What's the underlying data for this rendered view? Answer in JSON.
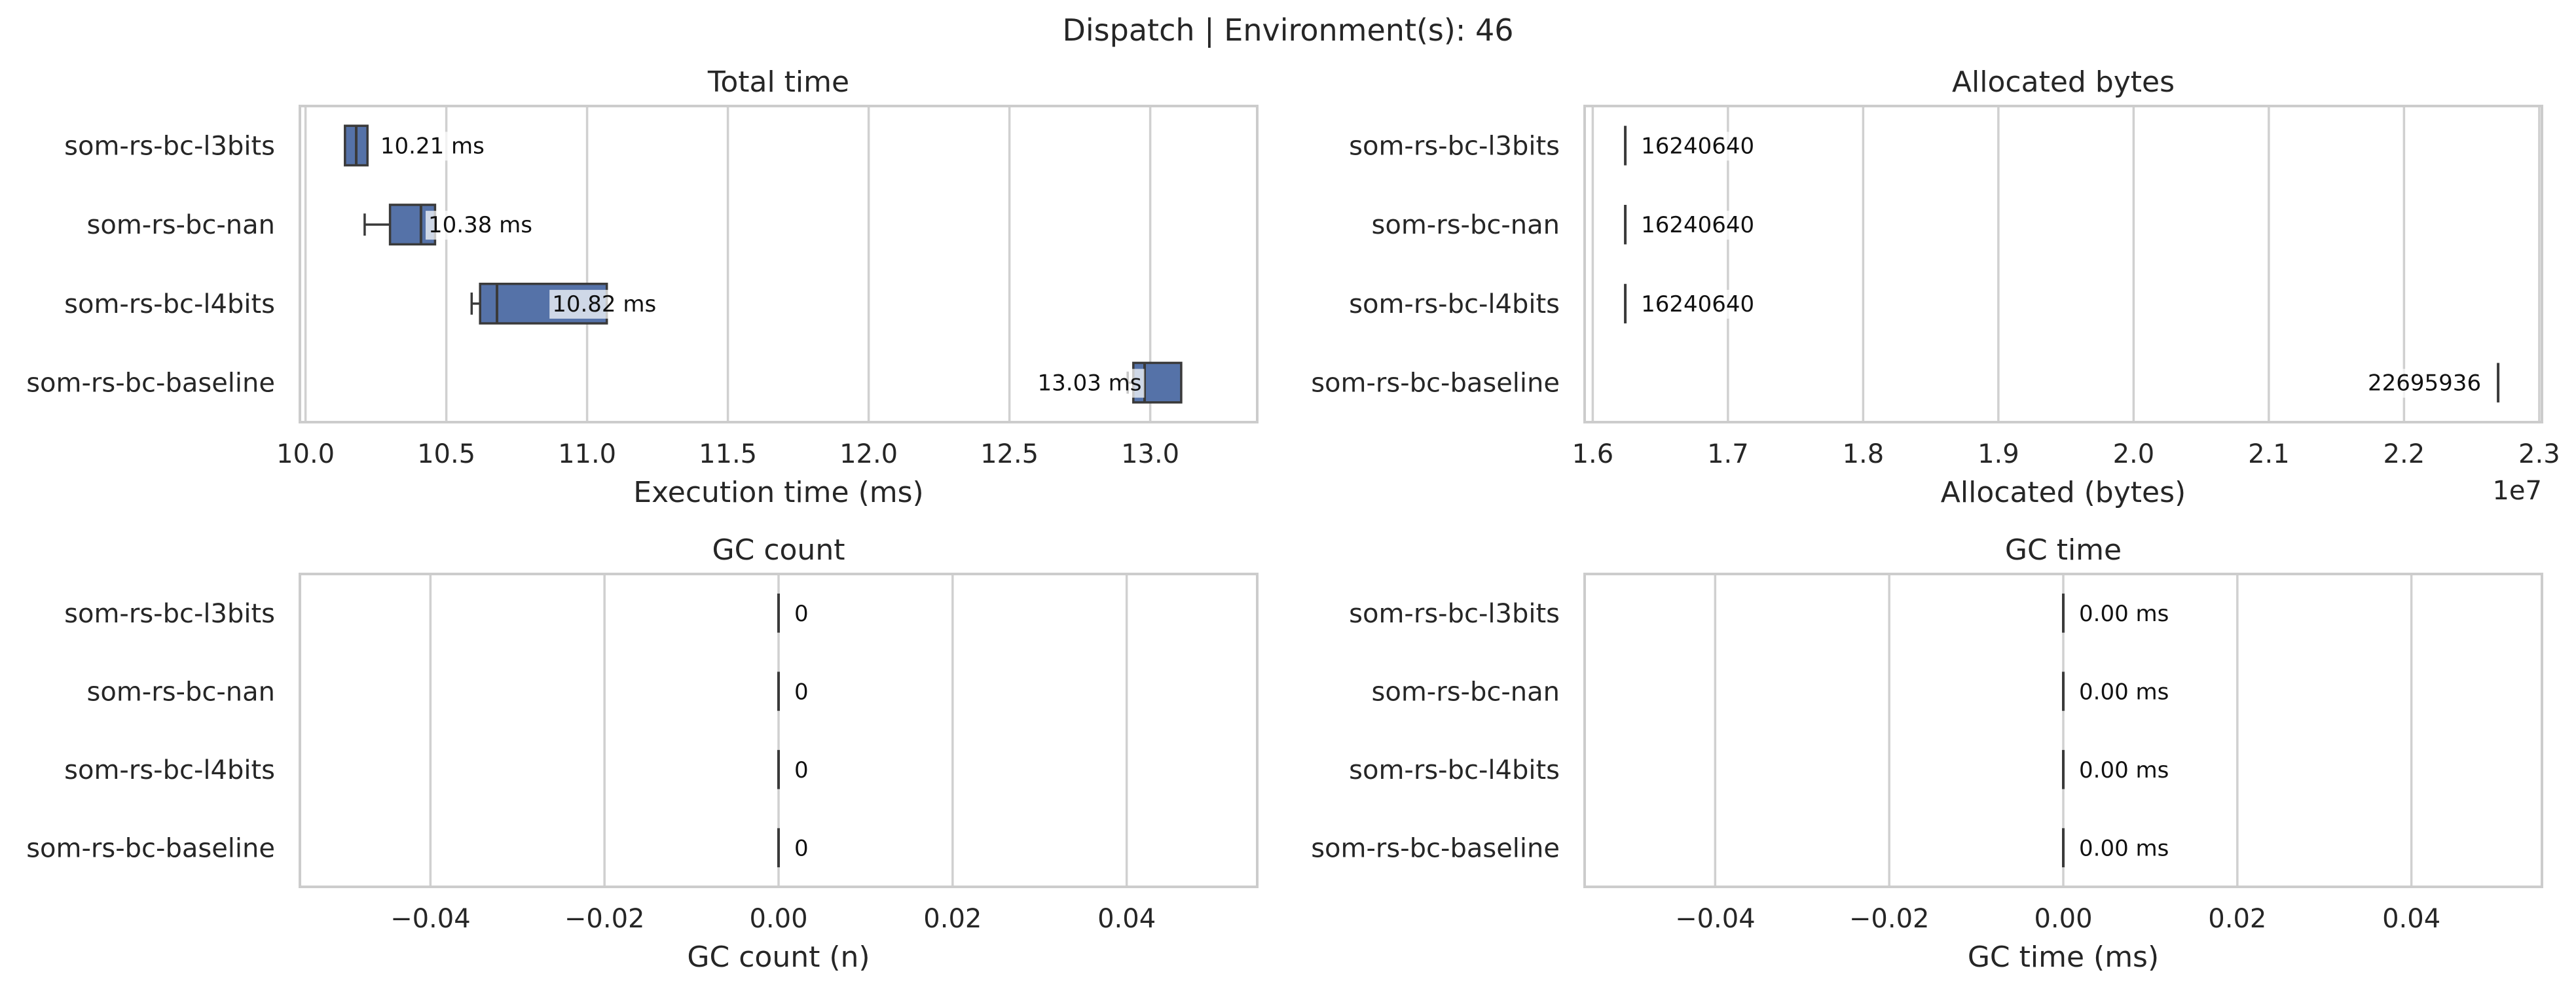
{
  "suptitle": "Dispatch | Environment(s): 46",
  "colors": {
    "box": "#5572a8",
    "grid": "#d0d0d0",
    "frame": "#cccccc"
  },
  "chart_data": [
    {
      "type": "box",
      "title": "Total time",
      "xlabel": "Execution time (ms)",
      "ylabel": "",
      "categories": [
        "som-rs-bc-l3bits",
        "som-rs-bc-nan",
        "som-rs-bc-l4bits",
        "som-rs-bc-baseline"
      ],
      "xlim": [
        9.98,
        13.38
      ],
      "xticks": [
        10.0,
        10.5,
        11.0,
        11.5,
        12.0,
        12.5,
        13.0
      ],
      "xtick_labels": [
        "10.0",
        "10.5",
        "11.0",
        "11.5",
        "12.0",
        "12.5",
        "13.0"
      ],
      "boxes": [
        {
          "whisker_low": 10.14,
          "q1": 10.14,
          "median": 10.18,
          "q3": 10.22,
          "whisker_high": 10.22
        },
        {
          "whisker_low": 10.21,
          "q1": 10.3,
          "median": 10.41,
          "q3": 10.46,
          "whisker_high": 10.46
        },
        {
          "whisker_low": 10.59,
          "q1": 10.62,
          "median": 10.68,
          "q3": 11.07,
          "whisker_high": 11.07
        },
        {
          "whisker_low": 12.92,
          "q1": 12.94,
          "median": 12.98,
          "q3": 13.11,
          "whisker_high": 13.11
        }
      ],
      "value_labels": [
        "10.21 ms",
        "10.38 ms",
        "10.82 ms",
        "13.03 ms"
      ],
      "label_values": [
        10.21,
        10.38,
        10.82,
        13.03
      ],
      "offset_text": ""
    },
    {
      "type": "box",
      "title": "Allocated bytes",
      "xlabel": "Allocated (bytes)",
      "ylabel": "",
      "categories": [
        "som-rs-bc-l3bits",
        "som-rs-bc-nan",
        "som-rs-bc-l4bits",
        "som-rs-bc-baseline"
      ],
      "xlim": [
        15940000,
        23020000
      ],
      "xticks": [
        16000000,
        17000000,
        18000000,
        19000000,
        20000000,
        21000000,
        22000000,
        23000000
      ],
      "xtick_labels": [
        "1.6",
        "1.7",
        "1.8",
        "1.9",
        "2.0",
        "2.1",
        "2.2",
        "2.3"
      ],
      "boxes": [
        {
          "whisker_low": 16240640,
          "q1": 16240640,
          "median": 16240640,
          "q3": 16240640,
          "whisker_high": 16240640
        },
        {
          "whisker_low": 16240640,
          "q1": 16240640,
          "median": 16240640,
          "q3": 16240640,
          "whisker_high": 16240640
        },
        {
          "whisker_low": 16240640,
          "q1": 16240640,
          "median": 16240640,
          "q3": 16240640,
          "whisker_high": 16240640
        },
        {
          "whisker_low": 22695936,
          "q1": 22695936,
          "median": 22695936,
          "q3": 22695936,
          "whisker_high": 22695936
        }
      ],
      "value_labels": [
        "16240640",
        "16240640",
        "16240640",
        "22695936"
      ],
      "label_values": [
        16240640,
        16240640,
        16240640,
        22695936
      ],
      "offset_text": "1e7"
    },
    {
      "type": "box",
      "title": "GC count",
      "xlabel": "GC count (n)",
      "ylabel": "",
      "categories": [
        "som-rs-bc-l3bits",
        "som-rs-bc-nan",
        "som-rs-bc-l4bits",
        "som-rs-bc-baseline"
      ],
      "xlim": [
        -0.055,
        0.055
      ],
      "xticks": [
        -0.04,
        -0.02,
        0.0,
        0.02,
        0.04
      ],
      "xtick_labels": [
        "−0.04",
        "−0.02",
        "0.00",
        "0.02",
        "0.04"
      ],
      "boxes": [
        {
          "whisker_low": 0,
          "q1": 0,
          "median": 0,
          "q3": 0,
          "whisker_high": 0
        },
        {
          "whisker_low": 0,
          "q1": 0,
          "median": 0,
          "q3": 0,
          "whisker_high": 0
        },
        {
          "whisker_low": 0,
          "q1": 0,
          "median": 0,
          "q3": 0,
          "whisker_high": 0
        },
        {
          "whisker_low": 0,
          "q1": 0,
          "median": 0,
          "q3": 0,
          "whisker_high": 0
        }
      ],
      "value_labels": [
        "0",
        "0",
        "0",
        "0"
      ],
      "label_values": [
        0,
        0,
        0,
        0
      ],
      "offset_text": ""
    },
    {
      "type": "box",
      "title": "GC time",
      "xlabel": "GC time (ms)",
      "ylabel": "",
      "categories": [
        "som-rs-bc-l3bits",
        "som-rs-bc-nan",
        "som-rs-bc-l4bits",
        "som-rs-bc-baseline"
      ],
      "xlim": [
        -0.055,
        0.055
      ],
      "xticks": [
        -0.04,
        -0.02,
        0.0,
        0.02,
        0.04
      ],
      "xtick_labels": [
        "−0.04",
        "−0.02",
        "0.00",
        "0.02",
        "0.04"
      ],
      "boxes": [
        {
          "whisker_low": 0,
          "q1": 0,
          "median": 0,
          "q3": 0,
          "whisker_high": 0
        },
        {
          "whisker_low": 0,
          "q1": 0,
          "median": 0,
          "q3": 0,
          "whisker_high": 0
        },
        {
          "whisker_low": 0,
          "q1": 0,
          "median": 0,
          "q3": 0,
          "whisker_high": 0
        },
        {
          "whisker_low": 0,
          "q1": 0,
          "median": 0,
          "q3": 0,
          "whisker_high": 0
        }
      ],
      "value_labels": [
        "0.00 ms",
        "0.00 ms",
        "0.00 ms",
        "0.00 ms"
      ],
      "label_values": [
        0,
        0,
        0,
        0
      ],
      "offset_text": ""
    }
  ]
}
